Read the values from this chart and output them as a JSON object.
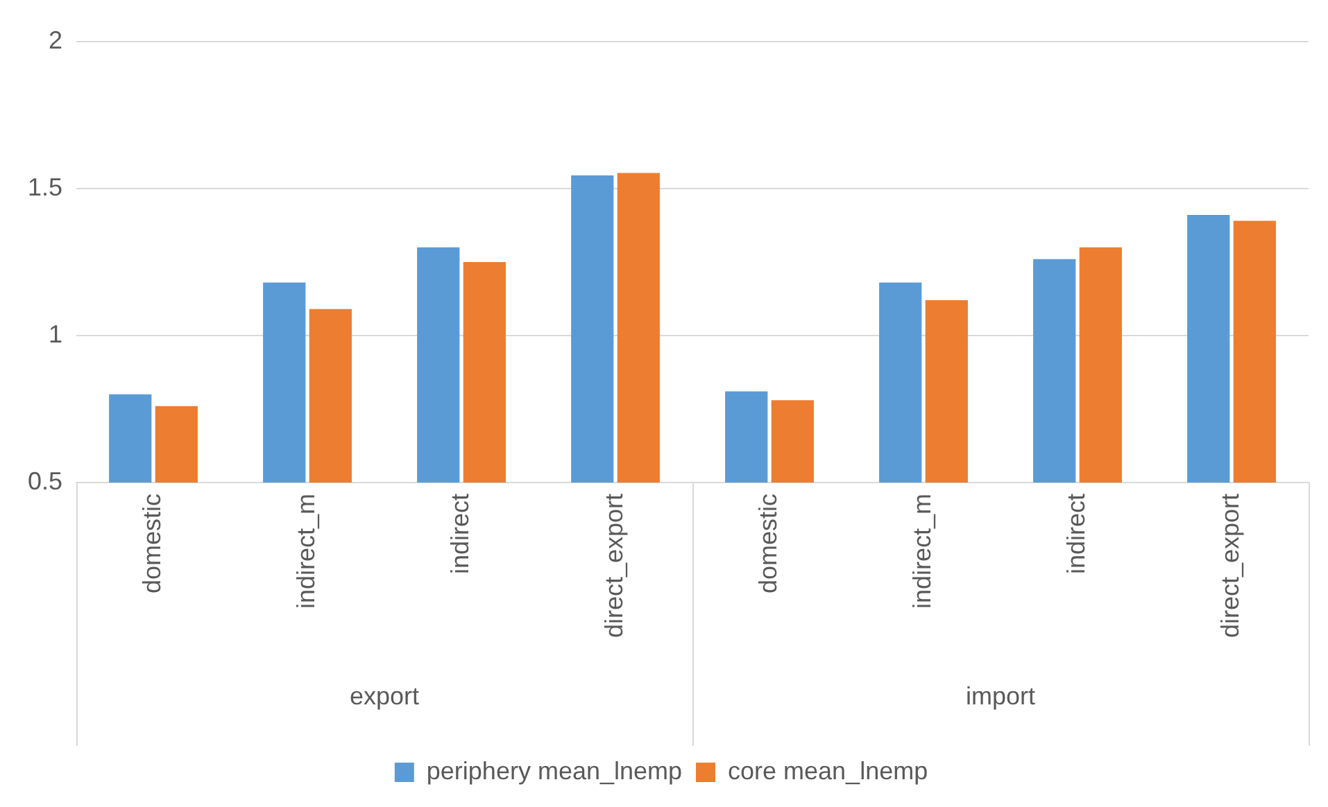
{
  "chart_data": {
    "type": "bar",
    "categories": [
      "domestic",
      "indirect_m",
      "indirect",
      "direct_export",
      "domestic",
      "indirect_m",
      "indirect",
      "direct_export"
    ],
    "series": [
      {
        "name": "periphery mean_lnemp",
        "color": "#5b9bd5",
        "values": [
          0.8,
          1.18,
          1.3,
          1.545,
          0.81,
          1.18,
          1.26,
          1.41
        ]
      },
      {
        "name": "core mean_lnemp",
        "color": "#ed7d31",
        "values": [
          0.76,
          1.09,
          1.25,
          1.553,
          0.78,
          1.12,
          1.3,
          1.39
        ]
      }
    ],
    "annotations": [
      "export",
      "import"
    ],
    "ylim": [
      0.5,
      2
    ],
    "yticks": [
      0.5,
      1,
      1.5,
      2
    ],
    "grid": "y",
    "legend": "bottom"
  }
}
